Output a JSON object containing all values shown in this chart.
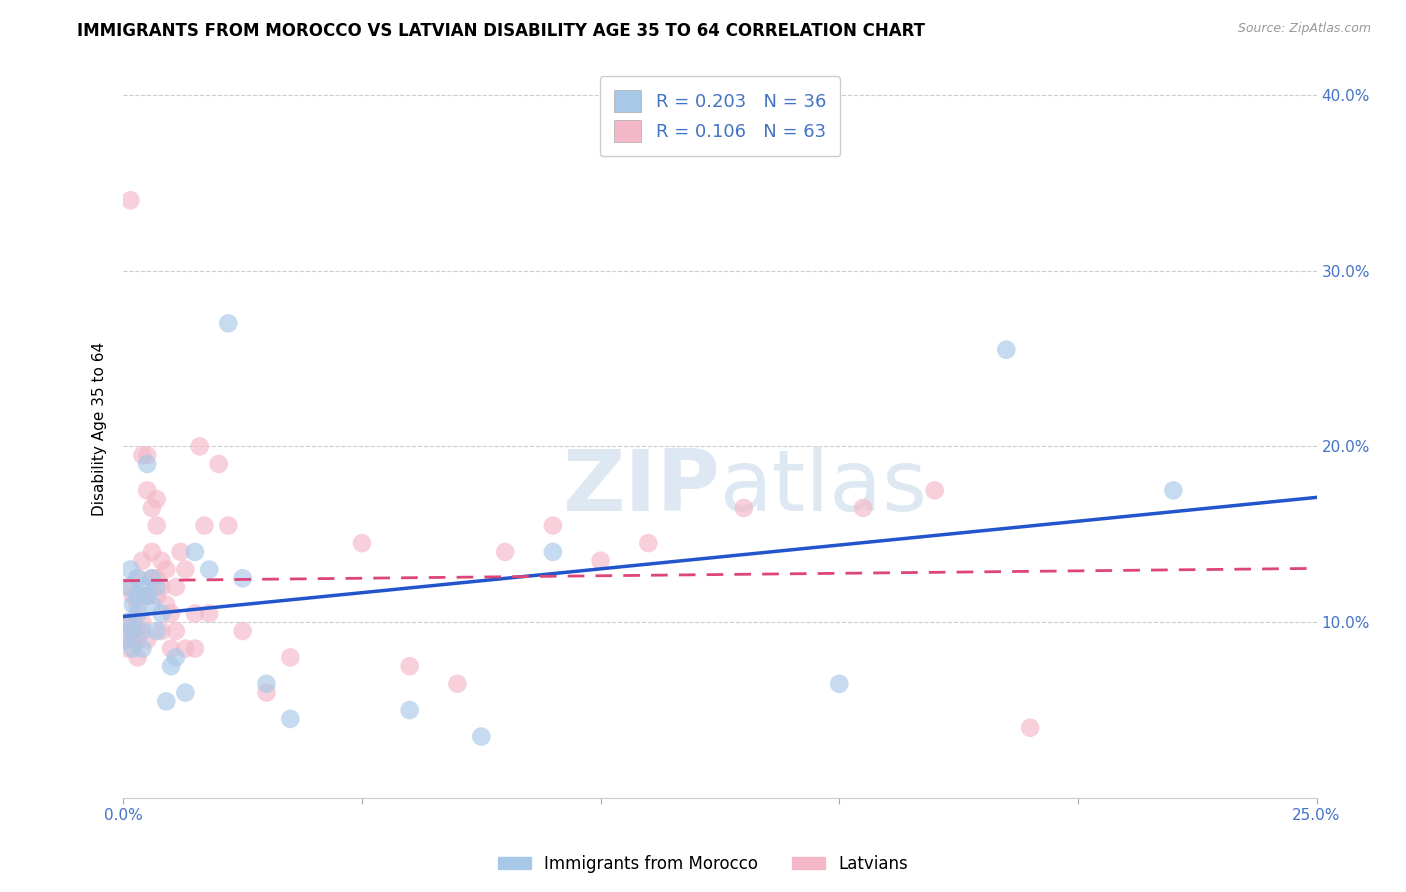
{
  "title": "IMMIGRANTS FROM MOROCCO VS LATVIAN DISABILITY AGE 35 TO 64 CORRELATION CHART",
  "source": "Source: ZipAtlas.com",
  "ylabel": "Disability Age 35 to 64",
  "xlim": [
    0.0,
    0.25
  ],
  "ylim": [
    0.0,
    0.42
  ],
  "blue_R": 0.203,
  "blue_N": 36,
  "pink_R": 0.106,
  "pink_N": 63,
  "blue_color": "#a8c8e8",
  "pink_color": "#f4b8c8",
  "blue_line_color": "#2255cc",
  "pink_line_color": "#dd4477",
  "axis_color": "#4472c4",
  "legend_label_blue": "Immigrants from Morocco",
  "legend_label_pink": "Latvians",
  "background_color": "#ffffff",
  "grid_color": "#cccccc",
  "title_fontsize": 12,
  "label_fontsize": 11,
  "blue_x": [
    0.0005,
    0.001,
    0.001,
    0.0015,
    0.002,
    0.002,
    0.002,
    0.003,
    0.003,
    0.003,
    0.004,
    0.004,
    0.004,
    0.005,
    0.005,
    0.006,
    0.006,
    0.007,
    0.007,
    0.008,
    0.009,
    0.01,
    0.011,
    0.013,
    0.015,
    0.018,
    0.022,
    0.025,
    0.03,
    0.035,
    0.06,
    0.075,
    0.09,
    0.15,
    0.185,
    0.22
  ],
  "blue_y": [
    0.09,
    0.1,
    0.12,
    0.13,
    0.11,
    0.095,
    0.085,
    0.125,
    0.115,
    0.105,
    0.12,
    0.095,
    0.085,
    0.19,
    0.115,
    0.125,
    0.11,
    0.12,
    0.095,
    0.105,
    0.055,
    0.075,
    0.08,
    0.06,
    0.14,
    0.13,
    0.27,
    0.125,
    0.065,
    0.045,
    0.05,
    0.035,
    0.14,
    0.065,
    0.255,
    0.175
  ],
  "pink_x": [
    0.0003,
    0.0005,
    0.001,
    0.001,
    0.001,
    0.0015,
    0.002,
    0.002,
    0.002,
    0.002,
    0.003,
    0.003,
    0.003,
    0.003,
    0.003,
    0.004,
    0.004,
    0.004,
    0.004,
    0.005,
    0.005,
    0.005,
    0.005,
    0.006,
    0.006,
    0.006,
    0.007,
    0.007,
    0.007,
    0.007,
    0.008,
    0.008,
    0.008,
    0.009,
    0.009,
    0.01,
    0.01,
    0.011,
    0.011,
    0.012,
    0.013,
    0.013,
    0.015,
    0.015,
    0.016,
    0.017,
    0.018,
    0.02,
    0.022,
    0.025,
    0.03,
    0.035,
    0.05,
    0.06,
    0.07,
    0.08,
    0.09,
    0.1,
    0.11,
    0.13,
    0.155,
    0.17,
    0.19
  ],
  "pink_y": [
    0.09,
    0.1,
    0.085,
    0.1,
    0.12,
    0.34,
    0.09,
    0.1,
    0.115,
    0.095,
    0.11,
    0.09,
    0.125,
    0.08,
    0.095,
    0.195,
    0.135,
    0.115,
    0.1,
    0.195,
    0.175,
    0.115,
    0.09,
    0.165,
    0.14,
    0.125,
    0.17,
    0.155,
    0.125,
    0.115,
    0.135,
    0.12,
    0.095,
    0.13,
    0.11,
    0.105,
    0.085,
    0.12,
    0.095,
    0.14,
    0.13,
    0.085,
    0.105,
    0.085,
    0.2,
    0.155,
    0.105,
    0.19,
    0.155,
    0.095,
    0.06,
    0.08,
    0.145,
    0.075,
    0.065,
    0.14,
    0.155,
    0.135,
    0.145,
    0.165,
    0.165,
    0.175,
    0.04
  ]
}
